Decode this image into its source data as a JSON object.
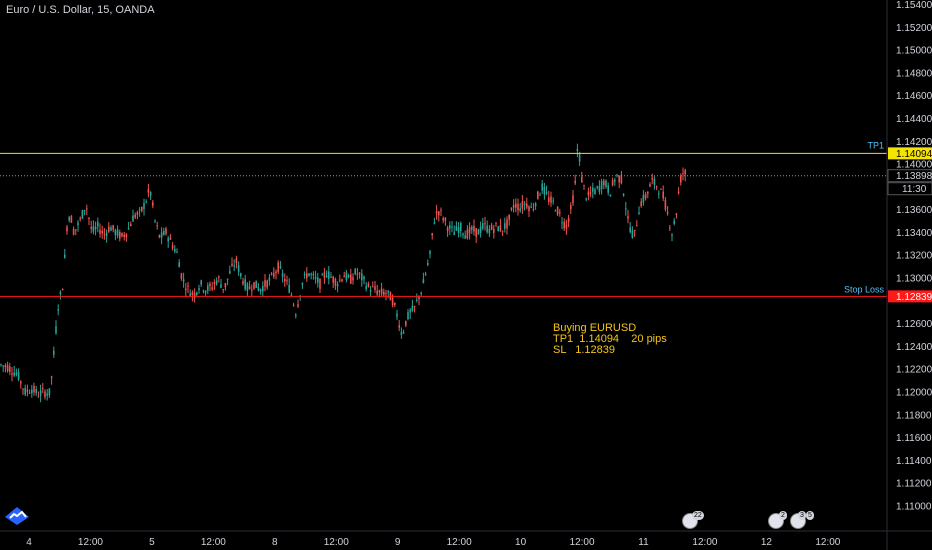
{
  "header": {
    "title": "Euro / U.S. Dollar, 15, OANDA"
  },
  "chart_data": {
    "type": "candlestick",
    "symbol": "EURUSD",
    "ylim": [
      1.1078,
      1.1544
    ],
    "y_ticks": [
      "1.15400",
      "1.15200",
      "1.15000",
      "1.14800",
      "1.14600",
      "1.14400",
      "1.14200",
      "1.14000",
      "1.13600",
      "1.13400",
      "1.13200",
      "1.13000",
      "1.12600",
      "1.12400",
      "1.12200",
      "1.12000",
      "1.11800",
      "1.11600",
      "1.11400",
      "1.11200",
      "1.11000"
    ],
    "x_ticks": [
      "4",
      "12:00",
      "5",
      "12:00",
      "8",
      "12:00",
      "9",
      "12:00",
      "10",
      "12:00",
      "11",
      "12:00",
      "12",
      "12:00"
    ],
    "lines": [
      {
        "label": "TP1",
        "value": 1.14094,
        "tag": "1.14094",
        "color": "#f5e400"
      },
      {
        "label": "Stop Loss",
        "value": 1.12839,
        "tag": "1.12839",
        "color": "#ff1a1a"
      }
    ],
    "price_line": {
      "value": 1.13898,
      "tag": "1.13898",
      "timer": "11:30"
    },
    "up_color": "#26a69a",
    "down_color": "#ef5350",
    "anchors": [
      [
        0,
        1.1224
      ],
      [
        8,
        1.1222
      ],
      [
        18,
        1.1215
      ],
      [
        25,
        1.12
      ],
      [
        32,
        1.1203
      ],
      [
        38,
        1.1198
      ],
      [
        44,
        1.12
      ],
      [
        50,
        1.1199
      ],
      [
        53,
        1.1225
      ],
      [
        58,
        1.1275
      ],
      [
        63,
        1.1295
      ],
      [
        67,
        1.1345
      ],
      [
        70,
        1.1358
      ],
      [
        74,
        1.134
      ],
      [
        80,
        1.135
      ],
      [
        86,
        1.1365
      ],
      [
        92,
        1.134
      ],
      [
        98,
        1.1345
      ],
      [
        104,
        1.1338
      ],
      [
        110,
        1.1345
      ],
      [
        116,
        1.134
      ],
      [
        122,
        1.1336
      ],
      [
        128,
        1.1342
      ],
      [
        134,
        1.1355
      ],
      [
        140,
        1.1356
      ],
      [
        146,
        1.1368
      ],
      [
        150,
        1.1378
      ],
      [
        155,
        1.135
      ],
      [
        160,
        1.1335
      ],
      [
        166,
        1.134
      ],
      [
        172,
        1.133
      ],
      [
        178,
        1.132
      ],
      [
        182,
        1.13
      ],
      [
        188,
        1.129
      ],
      [
        194,
        1.1285
      ],
      [
        200,
        1.1295
      ],
      [
        206,
        1.129
      ],
      [
        212,
        1.1292
      ],
      [
        218,
        1.13
      ],
      [
        224,
        1.129
      ],
      [
        230,
        1.1305
      ],
      [
        236,
        1.1315
      ],
      [
        242,
        1.13
      ],
      [
        248,
        1.129
      ],
      [
        254,
        1.1295
      ],
      [
        260,
        1.129
      ],
      [
        266,
        1.1295
      ],
      [
        272,
        1.13
      ],
      [
        278,
        1.131
      ],
      [
        284,
        1.13
      ],
      [
        290,
        1.129
      ],
      [
        296,
        1.127
      ],
      [
        302,
        1.1295
      ],
      [
        308,
        1.1305
      ],
      [
        314,
        1.13
      ],
      [
        320,
        1.1295
      ],
      [
        326,
        1.1305
      ],
      [
        332,
        1.13
      ],
      [
        338,
        1.1296
      ],
      [
        344,
        1.1303
      ],
      [
        350,
        1.1298
      ],
      [
        356,
        1.1305
      ],
      [
        362,
        1.13
      ],
      [
        368,
        1.1292
      ],
      [
        374,
        1.129
      ],
      [
        380,
        1.1287
      ],
      [
        386,
        1.1287
      ],
      [
        392,
        1.1282
      ],
      [
        398,
        1.1265
      ],
      [
        402,
        1.125
      ],
      [
        406,
        1.1262
      ],
      [
        410,
        1.127
      ],
      [
        414,
        1.1272
      ],
      [
        418,
        1.1282
      ],
      [
        422,
        1.129
      ],
      [
        426,
        1.1305
      ],
      [
        430,
        1.132
      ],
      [
        434,
        1.135
      ],
      [
        438,
        1.136
      ],
      [
        442,
        1.1355
      ],
      [
        448,
        1.1345
      ],
      [
        454,
        1.134
      ],
      [
        460,
        1.1345
      ],
      [
        466,
        1.1338
      ],
      [
        472,
        1.1342
      ],
      [
        478,
        1.134
      ],
      [
        484,
        1.1346
      ],
      [
        490,
        1.1342
      ],
      [
        496,
        1.1345
      ],
      [
        502,
        1.1343
      ],
      [
        508,
        1.1348
      ],
      [
        514,
        1.1365
      ],
      [
        520,
        1.1362
      ],
      [
        526,
        1.1366
      ],
      [
        532,
        1.136
      ],
      [
        538,
        1.1372
      ],
      [
        542,
        1.138
      ],
      [
        548,
        1.137
      ],
      [
        554,
        1.1365
      ],
      [
        560,
        1.1355
      ],
      [
        566,
        1.1345
      ],
      [
        571,
        1.136
      ],
      [
        575,
        1.138
      ],
      [
        578,
        1.142
      ],
      [
        582,
        1.1385
      ],
      [
        587,
        1.137
      ],
      [
        592,
        1.1375
      ],
      [
        598,
        1.1378
      ],
      [
        604,
        1.1385
      ],
      [
        610,
        1.1375
      ],
      [
        616,
        1.139
      ],
      [
        622,
        1.1386
      ],
      [
        628,
        1.135
      ],
      [
        634,
        1.1335
      ],
      [
        640,
        1.1365
      ],
      [
        646,
        1.1372
      ],
      [
        652,
        1.1385
      ],
      [
        658,
        1.138
      ],
      [
        664,
        1.137
      ],
      [
        668,
        1.1355
      ],
      [
        672,
        1.134
      ],
      [
        676,
        1.1355
      ],
      [
        680,
        1.1385
      ],
      [
        684,
        1.1395
      ],
      [
        687,
        1.1388
      ]
    ],
    "annotation": "Buying EURUSD\nTP1  1.14094    20 pips\nSL   1.12839"
  },
  "legend_badges": [
    "22",
    "2",
    "3",
    "5"
  ],
  "logo": {
    "name": "tradingview-logo",
    "color": "#2962ff"
  }
}
